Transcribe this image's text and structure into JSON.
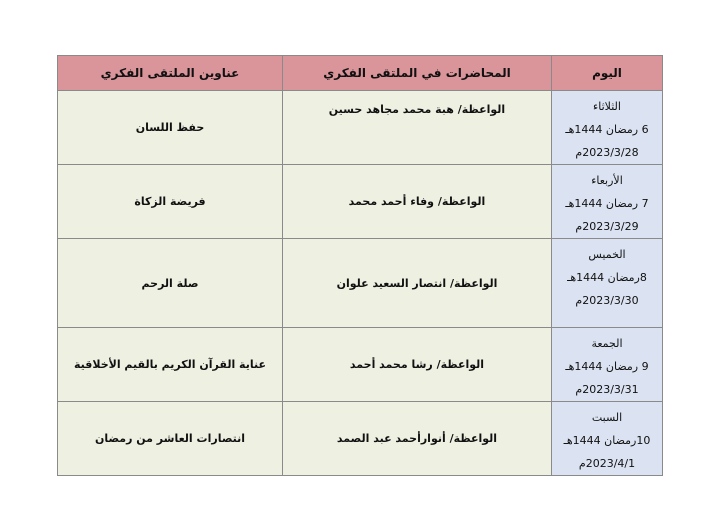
{
  "headers": {
    "day": "اليوم",
    "lecturers": "المحاضرات في الملتقى الفكري",
    "titles": "عناوين الملتقى الفكري"
  },
  "colors": {
    "header": "#d9959a",
    "day_cells": "#dbe2f1",
    "other_cells": "#eef0e2"
  },
  "rows": [
    {
      "day": "الثلاثاء",
      "hijri": "6 رمضان 1444هـ",
      "greg": "2023/3/28م",
      "lecturer": "الواعظة/ هبة محمد مجاهد حسين",
      "title": "حفظ اللسان"
    },
    {
      "day": "الأربعاء",
      "hijri": "7 رمضان 1444هـ",
      "greg": "2023/3/29م",
      "lecturer": "الواعظة/ وفاء أحمد محمد",
      "title": "فريضة الزكاة"
    },
    {
      "day": "الخميس",
      "hijri": "8رمضان 1444هـ",
      "greg": "2023/3/30م",
      "lecturer": "الواعظة/ انتصار السعيد علوان",
      "title": "صلة الرحم"
    },
    {
      "day": "الجمعة",
      "hijri": "9 رمضان 1444هـ",
      "greg": "2023/3/31م",
      "lecturer": "الواعظة/ رشا محمد أحمد",
      "title": "عناية القرآن الكريم بالقيم الأخلاقية"
    },
    {
      "day": "السبت",
      "hijri": "10رمضان 1444هـ",
      "greg": "2023/4/1م",
      "lecturer": "الواعظة/ أنوارأحمد عبد الصمد",
      "title": "انتصارات العاشر من رمضان"
    }
  ]
}
